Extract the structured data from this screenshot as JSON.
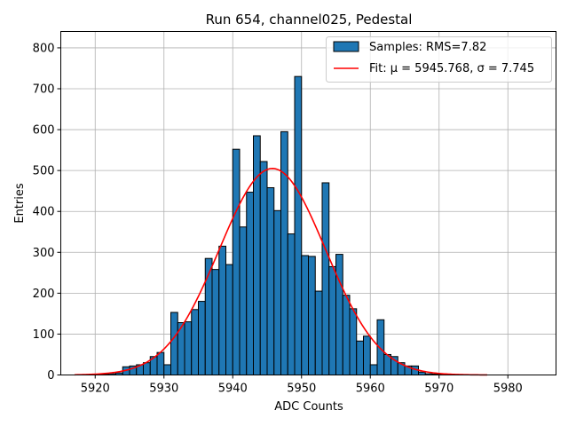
{
  "chart_data": {
    "type": "bar",
    "title": "Run 654, channel025, Pedestal",
    "xlabel": "ADC Counts",
    "ylabel": "Entries",
    "xlim": [
      5915,
      5987
    ],
    "ylim": [
      0,
      840
    ],
    "xticks": [
      5920,
      5930,
      5940,
      5950,
      5960,
      5970,
      5980
    ],
    "yticks": [
      0,
      100,
      200,
      300,
      400,
      500,
      600,
      700,
      800
    ],
    "grid": true,
    "legend_position": "top-right",
    "legend": [
      {
        "label": "Samples: RMS=7.82",
        "kind": "patch"
      },
      {
        "label": "Fit: μ = 5945.768, σ = 7.745",
        "kind": "line"
      }
    ],
    "histogram": {
      "name": "Samples: RMS=7.82",
      "color": "#1f77b4",
      "edge_color": "#000000",
      "bin_width": 1,
      "bin_starts": [
        5920,
        5921,
        5922,
        5923,
        5924,
        5925,
        5926,
        5927,
        5928,
        5929,
        5930,
        5931,
        5932,
        5933,
        5934,
        5935,
        5936,
        5937,
        5938,
        5939,
        5940,
        5941,
        5942,
        5943,
        5944,
        5945,
        5946,
        5947,
        5948,
        5949,
        5950,
        5951,
        5952,
        5953,
        5954,
        5955,
        5956,
        5957,
        5958,
        5959,
        5960,
        5961,
        5962,
        5963,
        5964,
        5965,
        5966,
        5967,
        5968,
        5969,
        5970
      ],
      "counts": [
        1,
        2,
        3,
        5,
        20,
        22,
        25,
        30,
        45,
        55,
        25,
        153,
        128,
        130,
        160,
        180,
        285,
        258,
        315,
        270,
        552,
        362,
        447,
        585,
        522,
        458,
        402,
        595,
        345,
        730,
        292,
        290,
        205,
        470,
        265,
        295,
        195,
        162,
        83,
        95,
        25,
        135,
        50,
        45,
        30,
        22,
        22,
        7,
        3,
        2,
        1
      ]
    },
    "fit": {
      "name": "Fit: μ = 5945.768, σ = 7.745",
      "color": "#ff0000",
      "mu": 5945.768,
      "sigma": 7.745,
      "amplitude": 505,
      "x_range": [
        5917,
        5977
      ]
    }
  }
}
